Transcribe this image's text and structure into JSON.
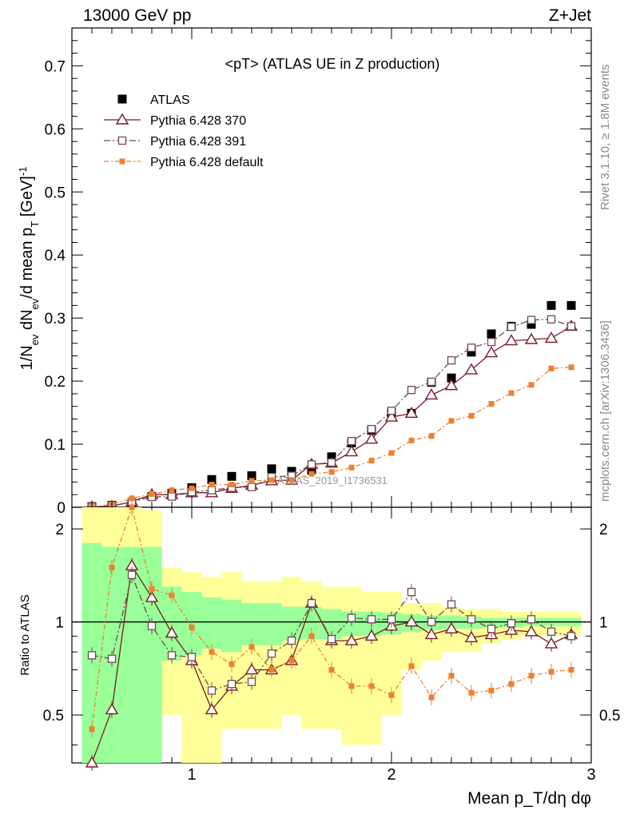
{
  "header": {
    "energy_label": "13000 GeV pp",
    "process_label": "Z+Jet"
  },
  "side_labels": {
    "rivet": "Rivet 3.1.10, ≥ 1.8M events",
    "mcplots": "mcplots.cern.ch [arXiv:1306.3436]"
  },
  "watermark": "ATLAS_2019_I1736531",
  "colors": {
    "atlas": "#000000",
    "p370": "#7b1a22",
    "p391": "#6e4a52",
    "pdefault": "#f07f30",
    "band_stat": "#99ff99",
    "band_total": "#ffff99"
  },
  "chart_data": {
    "type": "scatter",
    "title": "<pT> (ATLAS UE in Z production)",
    "xlabel": "Mean p_T/dη dφ",
    "ylabel": "1/N_ev dN_ev/d mean p_T [GeV]^-1",
    "ratio_ylabel": "Ratio to ATLAS",
    "xlim": [
      0.4,
      3.0
    ],
    "ylim": [
      0,
      0.76
    ],
    "ratio_ylim": [
      0.35,
      2.35
    ],
    "x_ticks": [
      1,
      2,
      3
    ],
    "y_ticks": [
      0,
      0.1,
      0.2,
      0.3,
      0.4,
      0.5,
      0.6,
      0.7
    ],
    "ratio_y_ticks": [
      0.5,
      1,
      2
    ],
    "x": [
      0.5,
      0.6,
      0.7,
      0.8,
      0.9,
      1.0,
      1.1,
      1.2,
      1.3,
      1.4,
      1.5,
      1.6,
      1.7,
      1.8,
      1.9,
      2.0,
      2.1,
      2.2,
      2.3,
      2.4,
      2.5,
      2.6,
      2.7,
      2.8,
      2.9
    ],
    "series": [
      {
        "name": "ATLAS",
        "marker": "filled-square",
        "values": [
          0.001,
          0.003,
          0.006,
          0.017,
          0.022,
          0.031,
          0.044,
          0.049,
          0.05,
          0.061,
          0.057,
          0.059,
          0.08,
          0.102,
          0.122,
          0.15,
          0.149,
          0.198,
          0.205,
          0.246,
          0.275,
          0.287,
          0.29,
          0.32,
          0.32
        ]
      },
      {
        "name": "Pythia 6.428 370",
        "marker": "open-triangle",
        "values": [
          0.0005,
          0.0015,
          0.009,
          0.02,
          0.02,
          0.023,
          0.023,
          0.03,
          0.035,
          0.042,
          0.043,
          0.068,
          0.07,
          0.088,
          0.108,
          0.143,
          0.149,
          0.178,
          0.193,
          0.218,
          0.245,
          0.264,
          0.266,
          0.268,
          0.287
        ]
      },
      {
        "name": "Pythia 6.428 391",
        "marker": "open-square",
        "values": [
          0.0008,
          0.0023,
          0.0085,
          0.0165,
          0.017,
          0.024,
          0.027,
          0.031,
          0.032,
          0.048,
          0.05,
          0.068,
          0.071,
          0.105,
          0.124,
          0.153,
          0.186,
          0.199,
          0.233,
          0.253,
          0.262,
          0.286,
          0.297,
          0.298,
          0.287
        ]
      },
      {
        "name": "Pythia 6.428 default",
        "marker": "filled-small-square",
        "values": [
          0.0005,
          0.0045,
          0.014,
          0.021,
          0.027,
          0.03,
          0.036,
          0.036,
          0.042,
          0.043,
          0.043,
          0.053,
          0.056,
          0.063,
          0.074,
          0.086,
          0.106,
          0.113,
          0.137,
          0.145,
          0.164,
          0.181,
          0.194,
          0.22,
          0.222
        ]
      }
    ],
    "ratio": {
      "reference_line": 1,
      "series": [
        {
          "name": "Pythia 6.428 370",
          "values": [
            0.3,
            0.52,
            1.52,
            1.2,
            0.92,
            0.75,
            0.52,
            0.62,
            0.7,
            0.7,
            0.75,
            1.15,
            0.87,
            0.87,
            0.9,
            0.97,
            1.0,
            0.91,
            0.95,
            0.89,
            0.91,
            0.94,
            0.93,
            0.85,
            0.91
          ]
        },
        {
          "name": "Pythia 6.428 391",
          "values": [
            0.78,
            0.76,
            1.42,
            0.97,
            0.78,
            0.77,
            0.6,
            0.63,
            0.64,
            0.79,
            0.87,
            1.15,
            0.88,
            1.03,
            1.02,
            1.02,
            1.25,
            1.0,
            1.14,
            1.02,
            0.95,
            0.99,
            1.02,
            0.93,
            0.9
          ]
        },
        {
          "name": "Pythia 6.428 default",
          "values": [
            0.45,
            1.5,
            2.4,
            1.28,
            1.22,
            0.96,
            0.8,
            0.73,
            0.83,
            0.7,
            0.75,
            0.9,
            0.7,
            0.62,
            0.62,
            0.58,
            0.72,
            0.57,
            0.67,
            0.59,
            0.6,
            0.63,
            0.67,
            0.69,
            0.7
          ]
        }
      ],
      "bands": {
        "bins": [
          [
            0.45,
            0.55
          ],
          [
            0.55,
            0.65
          ],
          [
            0.65,
            0.75
          ],
          [
            0.75,
            0.85
          ],
          [
            0.85,
            0.95
          ],
          [
            0.95,
            1.05
          ],
          [
            1.05,
            1.15
          ],
          [
            1.15,
            1.25
          ],
          [
            1.25,
            1.35
          ],
          [
            1.35,
            1.45
          ],
          [
            1.45,
            1.55
          ],
          [
            1.55,
            1.65
          ],
          [
            1.65,
            1.75
          ],
          [
            1.75,
            1.85
          ],
          [
            1.85,
            1.95
          ],
          [
            1.95,
            2.05
          ],
          [
            2.05,
            2.15
          ],
          [
            2.15,
            2.25
          ],
          [
            2.25,
            2.35
          ],
          [
            2.35,
            2.45
          ],
          [
            2.45,
            2.55
          ],
          [
            2.55,
            2.65
          ],
          [
            2.65,
            2.75
          ],
          [
            2.75,
            2.85
          ],
          [
            2.85,
            2.95
          ]
        ],
        "stat_low": [
          0.35,
          0.35,
          0.35,
          0.35,
          0.75,
          0.78,
          0.82,
          0.8,
          0.84,
          0.84,
          0.87,
          0.88,
          0.88,
          0.9,
          0.9,
          0.91,
          0.93,
          0.94,
          0.95,
          0.95,
          0.96,
          0.96,
          0.97,
          0.97,
          0.97
        ],
        "stat_high": [
          1.8,
          1.75,
          1.75,
          1.75,
          1.3,
          1.25,
          1.2,
          1.18,
          1.15,
          1.15,
          1.12,
          1.12,
          1.1,
          1.08,
          1.08,
          1.07,
          1.06,
          1.05,
          1.05,
          1.04,
          1.03,
          1.03,
          1.03,
          1.03,
          1.03
        ],
        "total_low": [
          0.35,
          0.35,
          0.35,
          0.35,
          0.5,
          0.35,
          0.35,
          0.45,
          0.45,
          0.45,
          0.5,
          0.45,
          0.45,
          0.4,
          0.4,
          0.5,
          0.7,
          0.75,
          0.8,
          0.8,
          0.85,
          0.88,
          0.9,
          0.9,
          0.9
        ],
        "total_high": [
          2.35,
          2.35,
          2.35,
          2.3,
          1.5,
          1.45,
          1.4,
          1.45,
          1.35,
          1.35,
          1.4,
          1.35,
          1.3,
          1.3,
          1.25,
          1.25,
          1.15,
          1.15,
          1.12,
          1.1,
          1.1,
          1.08,
          1.08,
          1.08,
          1.08
        ]
      }
    },
    "legend_position": "top-left"
  }
}
